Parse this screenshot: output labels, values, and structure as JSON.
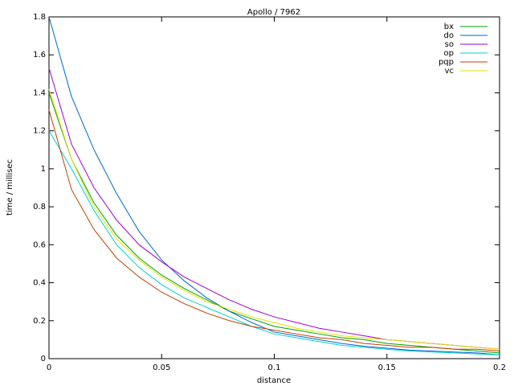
{
  "chart_data": {
    "type": "line",
    "title": "Apollo / 7962",
    "x_label": "distance",
    "y_label": "time / millisec",
    "x": [
      0,
      0.01,
      0.02,
      0.03,
      0.04,
      0.05,
      0.06,
      0.07,
      0.08,
      0.09,
      0.1,
      0.11,
      0.12,
      0.13,
      0.14,
      0.15,
      0.16,
      0.17,
      0.18,
      0.19,
      0.2
    ],
    "series": [
      {
        "name": "bx",
        "color": "#00a000",
        "values": [
          1.4,
          1.05,
          0.82,
          0.65,
          0.53,
          0.44,
          0.37,
          0.31,
          0.25,
          0.21,
          0.17,
          0.15,
          0.13,
          0.11,
          0.1,
          0.08,
          0.07,
          0.06,
          0.05,
          0.04,
          0.03
        ]
      },
      {
        "name": "do",
        "color": "#0066cc",
        "values": [
          1.8,
          1.38,
          1.1,
          0.87,
          0.67,
          0.52,
          0.41,
          0.32,
          0.25,
          0.19,
          0.14,
          0.12,
          0.1,
          0.08,
          0.065,
          0.055,
          0.045,
          0.04,
          0.035,
          0.03,
          0.02
        ]
      },
      {
        "name": "so",
        "color": "#a000d0",
        "values": [
          1.53,
          1.13,
          0.9,
          0.73,
          0.6,
          0.51,
          0.43,
          0.37,
          0.31,
          0.26,
          0.22,
          0.19,
          0.16,
          0.14,
          0.12,
          0.1,
          0.09,
          0.08,
          0.07,
          0.06,
          0.05
        ]
      },
      {
        "name": "op",
        "color": "#00d0d0",
        "values": [
          1.2,
          1.0,
          0.78,
          0.6,
          0.48,
          0.39,
          0.32,
          0.27,
          0.22,
          0.17,
          0.13,
          0.11,
          0.09,
          0.07,
          0.06,
          0.05,
          0.04,
          0.035,
          0.03,
          0.025,
          0.02
        ]
      },
      {
        "name": "pqp",
        "color": "#c04000",
        "values": [
          1.31,
          0.89,
          0.68,
          0.53,
          0.43,
          0.35,
          0.29,
          0.24,
          0.2,
          0.17,
          0.15,
          0.13,
          0.11,
          0.1,
          0.08,
          0.07,
          0.06,
          0.06,
          0.05,
          0.05,
          0.04
        ]
      },
      {
        "name": "vc",
        "color": "#e0e000",
        "values": [
          1.42,
          1.05,
          0.8,
          0.63,
          0.52,
          0.43,
          0.36,
          0.3,
          0.26,
          0.22,
          0.19,
          0.16,
          0.14,
          0.12,
          0.11,
          0.1,
          0.09,
          0.08,
          0.07,
          0.06,
          0.05
        ]
      }
    ],
    "xlim": [
      0,
      0.2
    ],
    "xticks": [
      0,
      0.05,
      0.1,
      0.15,
      0.2
    ],
    "ylim": [
      0,
      1.8
    ],
    "yticks": [
      0,
      0.2,
      0.4,
      0.6,
      0.8,
      1,
      1.2,
      1.4,
      1.6,
      1.8
    ],
    "legend": "top-right",
    "grid": false
  }
}
